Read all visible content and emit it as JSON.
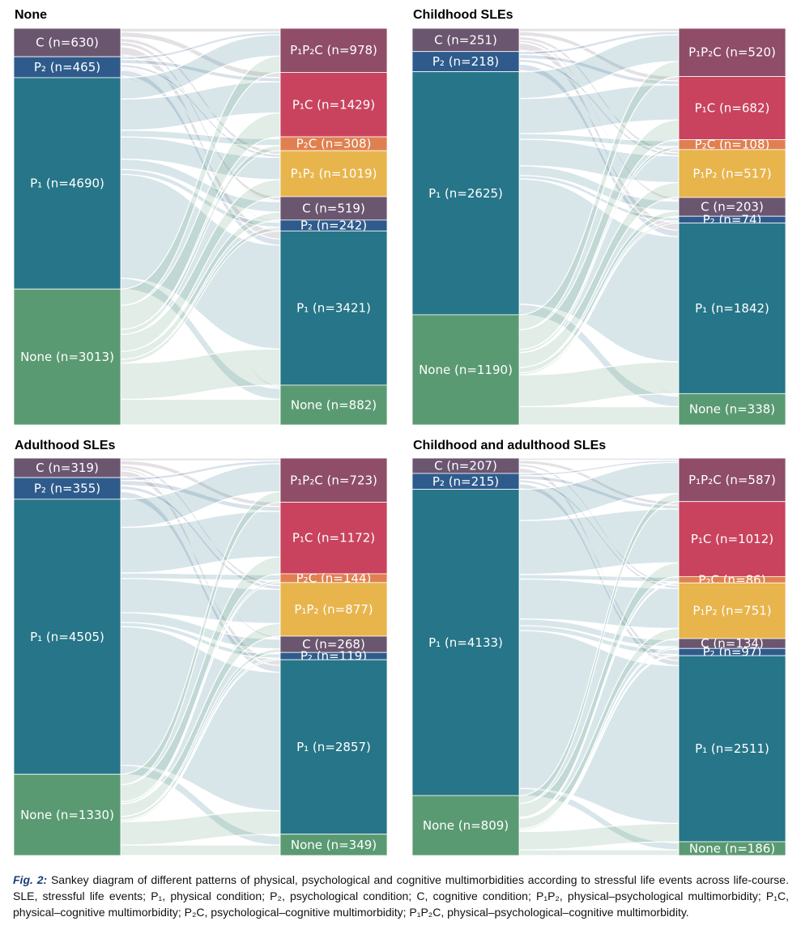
{
  "colors": {
    "C": "#6b5670",
    "P2": "#2e5b8c",
    "P1": "#267588",
    "None": "#5a9a72",
    "P1P2C": "#8f4d68",
    "P1C": "#c9435e",
    "P2C": "#e08050",
    "P1P2": "#e8b44c"
  },
  "chart_data": [
    {
      "type": "sankey",
      "title": "None",
      "left": [
        {
          "key": "C",
          "label": "C (n=630)",
          "value": 630
        },
        {
          "key": "P2",
          "label": "P₂ (n=465)",
          "value": 465
        },
        {
          "key": "P1",
          "label": "P₁ (n=4690)",
          "value": 4690
        },
        {
          "key": "None",
          "label": "None (n=3013)",
          "value": 3013
        }
      ],
      "right": [
        {
          "key": "P1P2C",
          "label": "P₁P₂C (n=978)",
          "value": 978
        },
        {
          "key": "P1C",
          "label": "P₁C (n=1429)",
          "value": 1429
        },
        {
          "key": "P2C",
          "label": "P₂C (n=308)",
          "value": 308
        },
        {
          "key": "P1P2",
          "label": "P₁P₂ (n=1019)",
          "value": 1019
        },
        {
          "key": "C",
          "label": "C (n=519)",
          "value": 519
        },
        {
          "key": "P2",
          "label": "P₂ (n=242)",
          "value": 242
        },
        {
          "key": "P1",
          "label": "P₁ (n=3421)",
          "value": 3421
        },
        {
          "key": "None",
          "label": "None (n=882)",
          "value": 882
        }
      ]
    },
    {
      "type": "sankey",
      "title": "Childhood SLEs",
      "left": [
        {
          "key": "C",
          "label": "C (n=251)",
          "value": 251
        },
        {
          "key": "P2",
          "label": "P₂ (n=218)",
          "value": 218
        },
        {
          "key": "P1",
          "label": "P₁ (n=2625)",
          "value": 2625
        },
        {
          "key": "None",
          "label": "None (n=1190)",
          "value": 1190
        }
      ],
      "right": [
        {
          "key": "P1P2C",
          "label": "P₁P₂C (n=520)",
          "value": 520
        },
        {
          "key": "P1C",
          "label": "P₁C (n=682)",
          "value": 682
        },
        {
          "key": "P2C",
          "label": "P₂C (n=108)",
          "value": 108
        },
        {
          "key": "P1P2",
          "label": "P₁P₂ (n=517)",
          "value": 517
        },
        {
          "key": "C",
          "label": "C (n=203)",
          "value": 203
        },
        {
          "key": "P2",
          "label": "P₂ (n=74)",
          "value": 74
        },
        {
          "key": "P1",
          "label": "P₁ (n=1842)",
          "value": 1842
        },
        {
          "key": "None",
          "label": "None (n=338)",
          "value": 338
        }
      ]
    },
    {
      "type": "sankey",
      "title": "Adulthood SLEs",
      "left": [
        {
          "key": "C",
          "label": "C (n=319)",
          "value": 319
        },
        {
          "key": "P2",
          "label": "P₂ (n=355)",
          "value": 355
        },
        {
          "key": "P1",
          "label": "P₁ (n=4505)",
          "value": 4505
        },
        {
          "key": "None",
          "label": "None (n=1330)",
          "value": 1330
        }
      ],
      "right": [
        {
          "key": "P1P2C",
          "label": "P₁P₂C (n=723)",
          "value": 723
        },
        {
          "key": "P1C",
          "label": "P₁C (n=1172)",
          "value": 1172
        },
        {
          "key": "P2C",
          "label": "P₂C (n=144)",
          "value": 144
        },
        {
          "key": "P1P2",
          "label": "P₁P₂ (n=877)",
          "value": 877
        },
        {
          "key": "C",
          "label": "C (n=268)",
          "value": 268
        },
        {
          "key": "P2",
          "label": "P₂ (n=119)",
          "value": 119
        },
        {
          "key": "P1",
          "label": "P₁ (n=2857)",
          "value": 2857
        },
        {
          "key": "None",
          "label": "None (n=349)",
          "value": 349
        }
      ]
    },
    {
      "type": "sankey",
      "title": "Childhood and adulthood SLEs",
      "left": [
        {
          "key": "C",
          "label": "C (n=207)",
          "value": 207
        },
        {
          "key": "P2",
          "label": "P₂ (n=215)",
          "value": 215
        },
        {
          "key": "P1",
          "label": "P₁ (n=4133)",
          "value": 4133
        },
        {
          "key": "None",
          "label": "None (n=809)",
          "value": 809
        }
      ],
      "right": [
        {
          "key": "P1P2C",
          "label": "P₁P₂C (n=587)",
          "value": 587
        },
        {
          "key": "P1C",
          "label": "P₁C (n=1012)",
          "value": 1012
        },
        {
          "key": "P2C",
          "label": "P₂C (n=86)",
          "value": 86
        },
        {
          "key": "P1P2",
          "label": "P₁P₂ (n=751)",
          "value": 751
        },
        {
          "key": "C",
          "label": "C (n=134)",
          "value": 134
        },
        {
          "key": "P2",
          "label": "P₂ (n=97)",
          "value": 97
        },
        {
          "key": "P1",
          "label": "P₁ (n=2511)",
          "value": 2511
        },
        {
          "key": "None",
          "label": "None (n=186)",
          "value": 186
        }
      ]
    }
  ],
  "caption": {
    "lead": "Fig. 2:",
    "text": "Sankey diagram of different patterns of physical, psychological and cognitive multimorbidities according to stressful life events across life-course. SLE, stressful life events; P₁, physical condition; P₂, psychological condition; C, cognitive condition; P₁P₂, physical–psychological multimorbidity; P₁C, physical–cognitive multimorbidity; P₂C, psychological–cognitive multimorbidity; P₁P₂C, physical–psychological–cognitive multimorbidity."
  }
}
